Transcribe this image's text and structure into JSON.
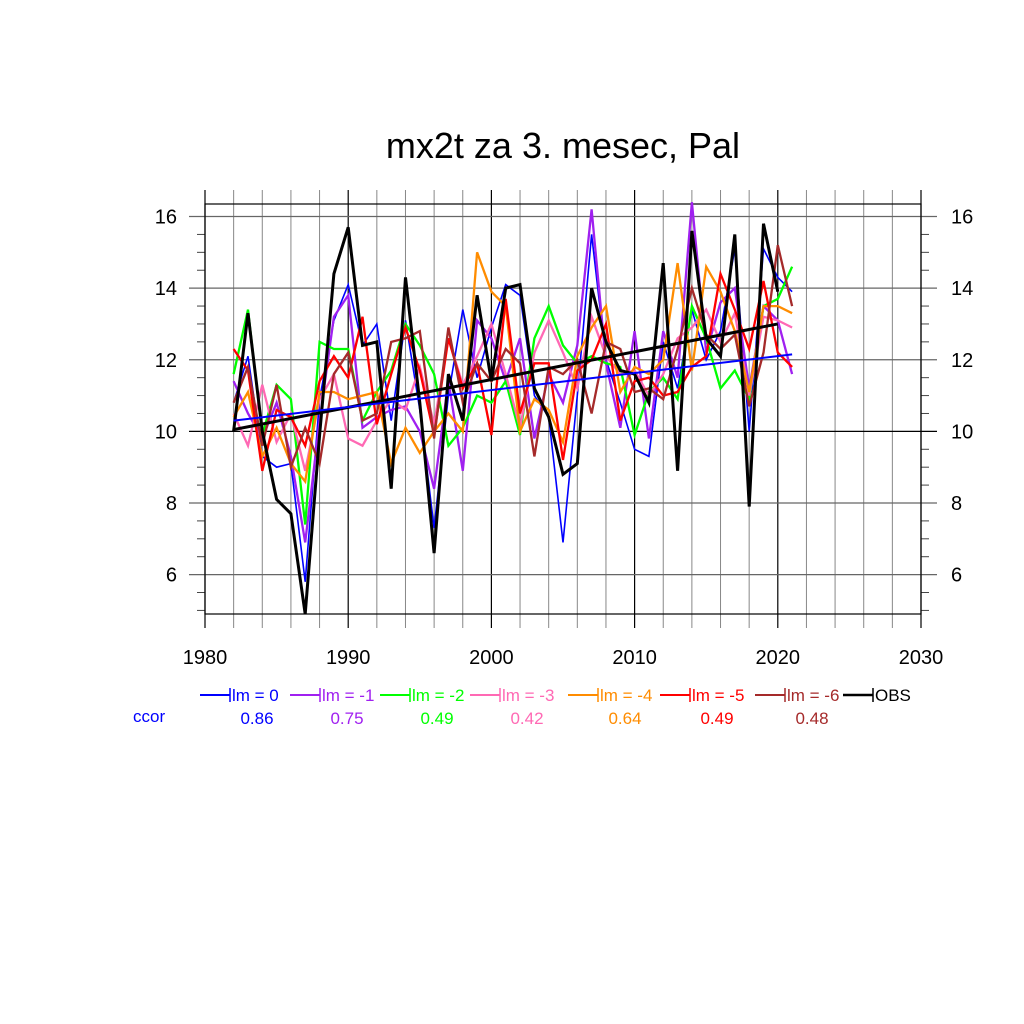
{
  "chart_data": {
    "type": "line",
    "title": "mx2t za 3. mesec, Pal",
    "xlabel": "",
    "ylabel": "",
    "xlim": [
      1980,
      2030
    ],
    "ylim": [
      4.9,
      16.35
    ],
    "xticks": [
      1980,
      1990,
      2000,
      2010,
      2020,
      2030
    ],
    "yticks": [
      6,
      8,
      10,
      12,
      14,
      16
    ],
    "grid": true,
    "legend_position": "bottom",
    "ccor_label": "ccor",
    "x": [
      1982,
      1983,
      1984,
      1985,
      1986,
      1987,
      1988,
      1989,
      1990,
      1991,
      1992,
      1993,
      1994,
      1995,
      1996,
      1997,
      1998,
      1999,
      2000,
      2001,
      2002,
      2003,
      2004,
      2005,
      2006,
      2007,
      2008,
      2009,
      2010,
      2011,
      2012,
      2013,
      2014,
      2015,
      2016,
      2017,
      2018,
      2019,
      2020,
      2021
    ],
    "series": [
      {
        "name": "lm = 0",
        "ccor": "0.86",
        "color": "#0000ff",
        "values": [
          10.8,
          12.1,
          9.3,
          9.0,
          9.1,
          5.8,
          10.9,
          13.1,
          14.1,
          12.4,
          13.0,
          10.3,
          13.1,
          10.6,
          7.3,
          11.0,
          13.4,
          11.5,
          12.9,
          14.1,
          13.8,
          11.0,
          10.4,
          6.9,
          11.0,
          15.5,
          12.0,
          10.8,
          9.5,
          9.3,
          12.5,
          11.2,
          13.4,
          12.0,
          12.8,
          15.1,
          10.0,
          15.1,
          14.3,
          13.9
        ]
      },
      {
        "name": "lm = -1",
        "ccor": "0.75",
        "color": "#a020f0",
        "values": [
          11.4,
          10.5,
          9.8,
          10.8,
          9.3,
          6.9,
          10.3,
          13.2,
          13.8,
          10.1,
          10.4,
          10.6,
          10.7,
          10.0,
          8.4,
          11.4,
          8.9,
          13.1,
          12.6,
          11.4,
          12.6,
          9.8,
          11.6,
          10.8,
          12.4,
          16.2,
          11.9,
          10.1,
          12.8,
          9.8,
          12.8,
          11.5,
          16.4,
          12.2,
          13.6,
          14.0,
          11.2,
          13.5,
          13.1,
          11.6
        ]
      },
      {
        "name": "lm = -2",
        "ccor": "0.49",
        "color": "#00ff00",
        "values": [
          11.6,
          13.4,
          9.9,
          11.3,
          10.9,
          7.4,
          12.5,
          12.3,
          12.3,
          10.3,
          11.1,
          11.7,
          13.0,
          12.4,
          11.6,
          9.6,
          10.1,
          11.0,
          10.8,
          11.4,
          9.9,
          12.6,
          13.5,
          12.4,
          11.9,
          12.1,
          11.9,
          11.8,
          9.9,
          11.1,
          11.5,
          10.9,
          13.5,
          12.6,
          11.2,
          11.7,
          10.9,
          13.5,
          13.7,
          14.6
        ]
      },
      {
        "name": "lm = -3",
        "ccor": "0.42",
        "color": "#ff69b4",
        "values": [
          10.5,
          9.6,
          11.3,
          9.7,
          10.5,
          8.9,
          10.9,
          11.6,
          9.8,
          9.6,
          10.3,
          10.9,
          10.6,
          11.8,
          10.2,
          12.6,
          11.3,
          12.1,
          13.0,
          11.6,
          10.1,
          12.2,
          13.1,
          12.2,
          11.2,
          13.2,
          12.1,
          11.6,
          11.7,
          11.0,
          11.6,
          12.6,
          12.9,
          13.4,
          12.5,
          13.3,
          11.0,
          13.2,
          13.1,
          12.9
        ]
      },
      {
        "name": "lm = -4",
        "ccor": "0.64",
        "color": "#ff8c00",
        "values": [
          10.4,
          11.1,
          9.3,
          10.1,
          9.1,
          8.6,
          11.1,
          11.1,
          10.9,
          11.0,
          11.1,
          9.1,
          10.1,
          9.4,
          10.0,
          10.5,
          10.0,
          15.0,
          13.9,
          13.5,
          10.0,
          10.9,
          10.6,
          9.7,
          12.1,
          12.9,
          13.5,
          11.1,
          11.8,
          11.6,
          12.0,
          14.7,
          11.7,
          14.6,
          13.9,
          12.8,
          11.1,
          13.5,
          13.5,
          13.3
        ]
      },
      {
        "name": "lm = -5",
        "ccor": "0.49",
        "color": "#ff0000",
        "values": [
          12.3,
          11.7,
          8.9,
          10.6,
          10.4,
          9.6,
          11.4,
          12.1,
          11.5,
          13.2,
          10.2,
          11.6,
          12.9,
          11.7,
          9.9,
          12.6,
          11.2,
          11.9,
          9.9,
          13.7,
          10.5,
          11.9,
          11.9,
          9.2,
          11.7,
          12.0,
          13.0,
          10.3,
          11.4,
          11.5,
          11.0,
          11.1,
          11.8,
          12.1,
          14.4,
          13.4,
          12.3,
          14.2,
          12.2,
          11.8
        ]
      },
      {
        "name": "lm = -6",
        "ccor": "0.48",
        "color": "#a52a2a",
        "values": [
          10.8,
          11.8,
          9.6,
          11.3,
          9.0,
          10.1,
          9.1,
          11.6,
          12.2,
          10.3,
          10.5,
          12.5,
          12.6,
          12.8,
          9.8,
          12.9,
          10.8,
          11.9,
          11.4,
          12.3,
          11.9,
          9.3,
          11.8,
          11.6,
          12.0,
          10.5,
          12.5,
          12.3,
          11.1,
          11.2,
          10.9,
          12.3,
          14.0,
          12.7,
          12.3,
          12.7,
          10.7,
          12.2,
          15.2,
          13.5
        ]
      },
      {
        "name": "OBS",
        "ccor": "",
        "color": "#000000",
        "values": [
          10.0,
          13.3,
          10.0,
          8.1,
          7.7,
          4.9,
          9.9,
          14.4,
          15.7,
          12.4,
          12.5,
          8.4,
          14.3,
          10.8,
          6.6,
          11.6,
          10.3,
          13.8,
          11.4,
          14.0,
          14.1,
          11.2,
          10.4,
          8.8,
          9.1,
          14.0,
          12.5,
          11.7,
          11.6,
          10.8,
          14.7,
          8.9,
          15.6,
          12.6,
          12.1,
          15.5,
          7.9,
          15.8,
          13.9,
          null
        ]
      }
    ],
    "trend_lines": [
      {
        "name": "OBS trend",
        "color": "#000000",
        "x": [
          1982,
          2020
        ],
        "y": [
          10.05,
          13.0
        ]
      },
      {
        "name": "lm = 0 trend",
        "color": "#0000ff",
        "x": [
          1982,
          2021
        ],
        "y": [
          10.3,
          12.15
        ]
      }
    ]
  }
}
